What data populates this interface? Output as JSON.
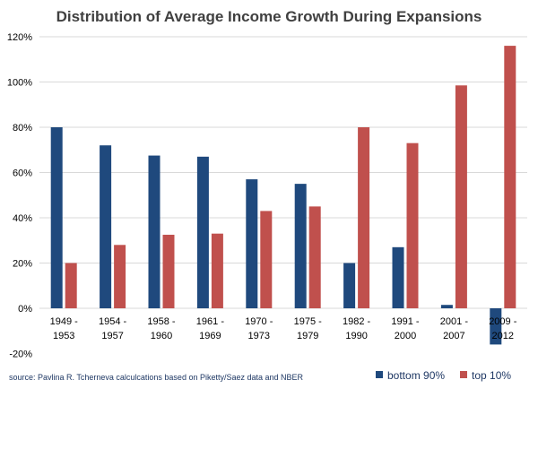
{
  "chart_data": {
    "type": "bar",
    "title": "Distribution of Average Income Growth During Expansions",
    "categories": [
      [
        "1949 -",
        "1953"
      ],
      [
        "1954 -",
        "1957"
      ],
      [
        "1958 -",
        "1960"
      ],
      [
        "1961 -",
        "1969"
      ],
      [
        "1970 -",
        "1973"
      ],
      [
        "1975 -",
        "1979"
      ],
      [
        "1982 -",
        "1990"
      ],
      [
        "1991 -",
        "2000"
      ],
      [
        "2001 -",
        "2007"
      ],
      [
        "2009 -",
        "2012"
      ]
    ],
    "series": [
      {
        "name": "bottom 90%",
        "color": "#1f497d",
        "values": [
          80,
          72,
          67.5,
          67,
          57,
          55,
          20,
          27,
          1.5,
          -16
        ]
      },
      {
        "name": "top 10%",
        "color": "#c0504d",
        "values": [
          20,
          28,
          32.5,
          33,
          43,
          45,
          80,
          73,
          98.5,
          116
        ]
      }
    ],
    "ylim": [
      -20,
      120
    ],
    "yticks": [
      -20,
      0,
      20,
      40,
      60,
      80,
      100,
      120
    ],
    "ytick_labels": [
      "-20%",
      "0%",
      "20%",
      "40%",
      "60%",
      "80%",
      "100%",
      "120%"
    ],
    "grid": true,
    "legend": "bottom-right",
    "source_note": "source: Pavlina R. Tcherneva calculcations based on Piketty/Saez data and NBER"
  }
}
